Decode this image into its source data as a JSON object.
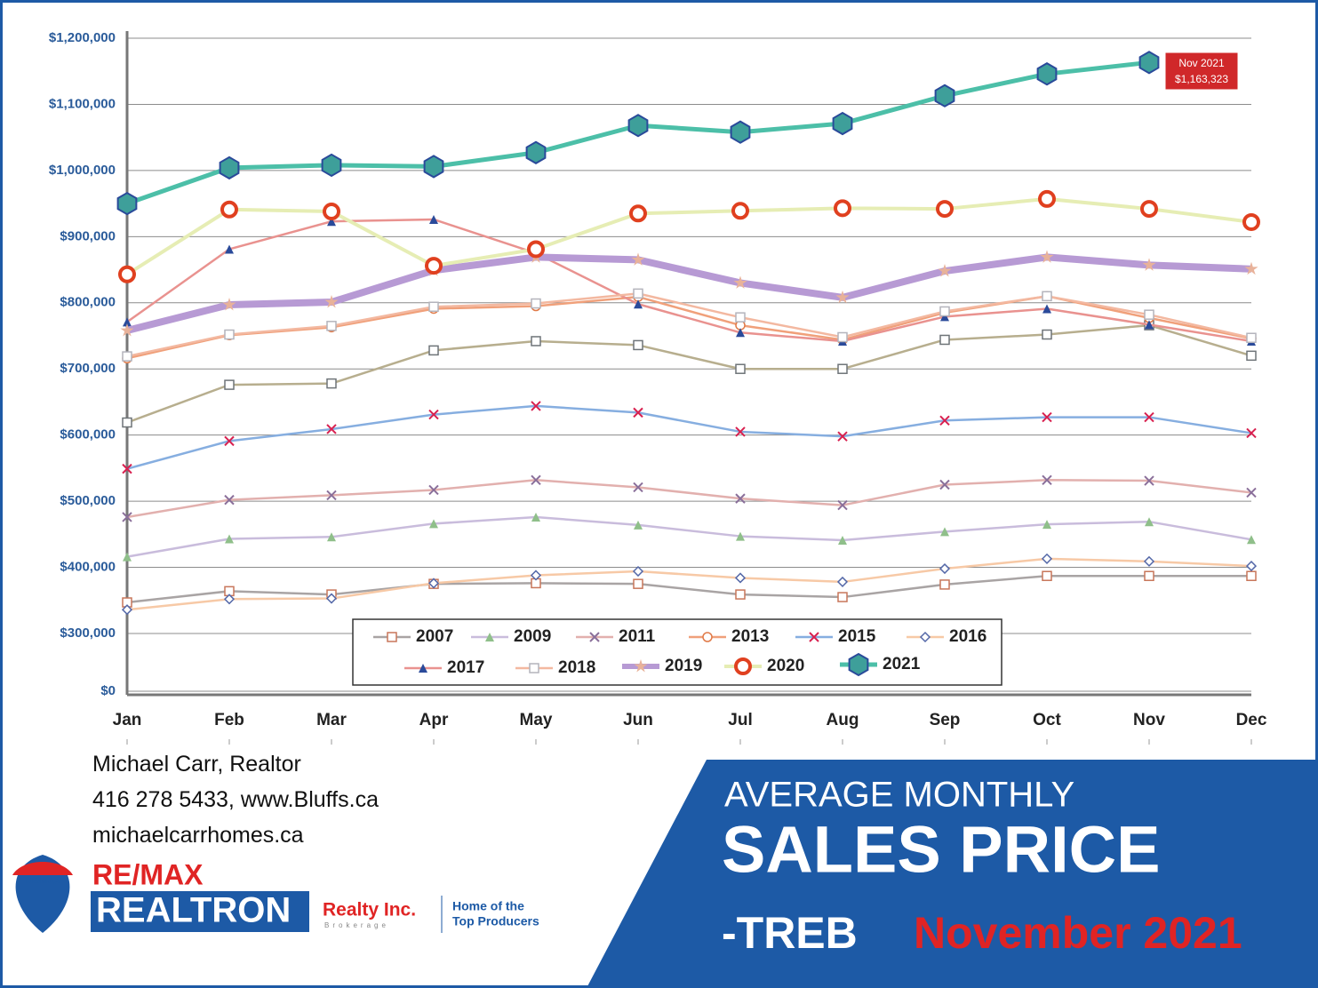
{
  "chart_data": {
    "type": "line",
    "categories": [
      "Jan",
      "Feb",
      "Mar",
      "Apr",
      "May",
      "Jun",
      "Jul",
      "Aug",
      "Sep",
      "Oct",
      "Nov",
      "Dec"
    ],
    "ylim": [
      0,
      1200000
    ],
    "yticks": [
      {
        "value": 0,
        "label": "$0"
      },
      {
        "value": 300000,
        "label": "$300,000"
      },
      {
        "value": 400000,
        "label": "$400,000"
      },
      {
        "value": 500000,
        "label": "$500,000"
      },
      {
        "value": 600000,
        "label": "$600,000"
      },
      {
        "value": 700000,
        "label": "$700,000"
      },
      {
        "value": 800000,
        "label": "$800,000"
      },
      {
        "value": 900000,
        "label": "$900,000"
      },
      {
        "value": 1000000,
        "label": "$1,000,000"
      },
      {
        "value": 1100000,
        "label": "$1,100,000"
      },
      {
        "value": 1200000,
        "label": "$1,200,000"
      }
    ],
    "grid": true,
    "series": [
      {
        "color": "#b7ae8e",
        "marker": "square",
        "marker_color": "#6e7478",
        "values": [
          619000,
          676000,
          678000,
          728000,
          742000,
          736000,
          700000,
          700000,
          744000,
          752000,
          766000,
          720000
        ]
      },
      {
        "name": "2007",
        "color": "#a9a4a4",
        "marker": "square",
        "marker_color": "#c8765a",
        "values": [
          347000,
          364000,
          359000,
          375000,
          376000,
          375000,
          359000,
          355000,
          374000,
          387000,
          387000,
          387000
        ]
      },
      {
        "name": "2009",
        "color": "#c9bcdc",
        "marker": "triangle",
        "marker_color": "#8fbf8a",
        "values": [
          416000,
          443000,
          446000,
          466000,
          476000,
          464000,
          447000,
          441000,
          454000,
          465000,
          469000,
          442000
        ]
      },
      {
        "name": "2011",
        "color": "#e2b0ae",
        "marker": "x",
        "marker_color": "#8a6f9a",
        "values": [
          476000,
          502000,
          509000,
          517000,
          532000,
          521000,
          504000,
          494000,
          525000,
          532000,
          531000,
          513000
        ]
      },
      {
        "name": "2013",
        "color": "#f0a07a",
        "marker": "circle",
        "marker_color": "#e07a48",
        "values": [
          716000,
          751000,
          763000,
          791000,
          795000,
          809000,
          766000,
          744000,
          785000,
          810000,
          777000,
          746000
        ]
      },
      {
        "name": "2015",
        "color": "#86aee0",
        "marker": "x",
        "marker_color": "#d8204f",
        "values": [
          549000,
          591000,
          609000,
          631000,
          644000,
          634000,
          605000,
          598000,
          622000,
          627000,
          627000,
          603000
        ]
      },
      {
        "name": "2016",
        "color": "#f7c9a6",
        "marker": "diamond",
        "marker_color": "#5468a8",
        "values": [
          336000,
          352000,
          353000,
          376000,
          388000,
          394000,
          384000,
          378000,
          398000,
          413000,
          409000,
          402000
        ]
      },
      {
        "name": "2017",
        "color": "#e9928f",
        "marker": "triangle",
        "marker_color": "#2a4a9a",
        "values": [
          771000,
          881000,
          923000,
          926000,
          875000,
          798000,
          755000,
          742000,
          779000,
          791000,
          767000,
          742000
        ]
      },
      {
        "name": "2018",
        "color": "#f3b8a0",
        "marker": "square",
        "marker_color": "#b4b4bc",
        "values": [
          719000,
          752000,
          765000,
          794000,
          799000,
          814000,
          778000,
          748000,
          787000,
          810000,
          782000,
          747000
        ]
      },
      {
        "name": "2019",
        "color": "#b79ad4",
        "marker": "star",
        "marker_color": "#e8b29a",
        "width": 8,
        "values": [
          758000,
          797000,
          801000,
          849000,
          869000,
          865000,
          830000,
          808000,
          848000,
          869000,
          857000,
          851000
        ]
      },
      {
        "name": "2020",
        "color": "#e6edb4",
        "marker": "ring",
        "marker_color": "#e0401f",
        "width": 4,
        "values": [
          843000,
          941000,
          938000,
          856000,
          881000,
          935000,
          939000,
          943000,
          942000,
          957000,
          942000,
          922000
        ]
      },
      {
        "name": "2021",
        "color": "#4cbfa8",
        "marker": "hexagon",
        "marker_color": "#3e9f9a",
        "width": 5,
        "values": [
          950000,
          1004000,
          1008000,
          1006000,
          1027000,
          1068000,
          1058000,
          1071000,
          1113000,
          1146000,
          1163323,
          null
        ]
      }
    ],
    "annotations": [
      "Nov 2021",
      "$1,163,323"
    ]
  },
  "footer": {
    "agent": [
      "Michael Carr, Realtor",
      "416 278 5433, www.Bluffs.ca",
      "michaelcarrhomes.ca"
    ],
    "logo": {
      "brand": "RE/MAX",
      "balloon": "RE/MAX",
      "office": "REALTRON",
      "company": "Realty Inc.",
      "brokerage": "Brokerage",
      "tagline": [
        "Home of the",
        "Top Producers"
      ]
    },
    "banner": {
      "line1": "AVERAGE MONTHLY",
      "line2": "SALES PRICE",
      "line3": "-TREB",
      "line3_highlight": "November 2021"
    }
  }
}
